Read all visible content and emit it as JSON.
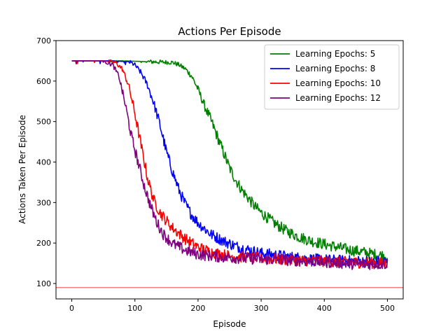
{
  "chart_data": {
    "type": "line",
    "title": "Actions Per Episode",
    "xlabel": "Episode",
    "ylabel": "Actions Taken Per Episode",
    "xlim": [
      -25,
      525
    ],
    "ylim": [
      62,
      700
    ],
    "xticks": [
      0,
      100,
      200,
      300,
      400,
      500
    ],
    "yticks": [
      100,
      200,
      300,
      400,
      500,
      600,
      700
    ],
    "grid": false,
    "legend_position": "upper right",
    "reference_line": {
      "y": 90,
      "color": "#f08080"
    },
    "series": [
      {
        "name": "Learning Epochs: 5",
        "color": "#008000",
        "x": [
          0,
          40,
          80,
          120,
          160,
          170,
          180,
          190,
          200,
          210,
          220,
          230,
          240,
          250,
          260,
          270,
          280,
          290,
          300,
          320,
          340,
          360,
          380,
          400,
          420,
          440,
          460,
          480,
          500
        ],
        "y": [
          650,
          650,
          650,
          648,
          646,
          640,
          630,
          612,
          580,
          540,
          505,
          465,
          425,
          385,
          355,
          330,
          310,
          290,
          275,
          250,
          230,
          215,
          205,
          197,
          190,
          183,
          178,
          172,
          168
        ]
      },
      {
        "name": "Learning Epochs: 8",
        "color": "#0000ff",
        "x": [
          0,
          60,
          90,
          100,
          110,
          120,
          130,
          140,
          150,
          160,
          170,
          180,
          190,
          200,
          220,
          240,
          260,
          280,
          300,
          340,
          380,
          420,
          460,
          500
        ],
        "y": [
          650,
          650,
          648,
          640,
          620,
          590,
          545,
          490,
          425,
          375,
          330,
          295,
          270,
          250,
          222,
          205,
          192,
          183,
          175,
          167,
          160,
          157,
          155,
          153
        ]
      },
      {
        "name": "Learning Epochs: 10",
        "color": "#ff0000",
        "x": [
          0,
          50,
          70,
          80,
          90,
          100,
          110,
          120,
          130,
          140,
          150,
          160,
          180,
          200,
          220,
          250,
          300,
          350,
          400,
          450,
          500
        ],
        "y": [
          650,
          650,
          645,
          630,
          590,
          520,
          440,
          360,
          305,
          275,
          255,
          237,
          210,
          190,
          178,
          168,
          162,
          158,
          155,
          152,
          150
        ]
      },
      {
        "name": "Learning Epochs: 12",
        "color": "#800080",
        "x": [
          0,
          50,
          65,
          75,
          85,
          95,
          105,
          115,
          125,
          135,
          145,
          160,
          180,
          200,
          240,
          300,
          350,
          400,
          450,
          500
        ],
        "y": [
          650,
          650,
          640,
          610,
          540,
          460,
          400,
          340,
          290,
          250,
          222,
          198,
          182,
          172,
          165,
          160,
          157,
          153,
          148,
          148
        ]
      }
    ]
  }
}
